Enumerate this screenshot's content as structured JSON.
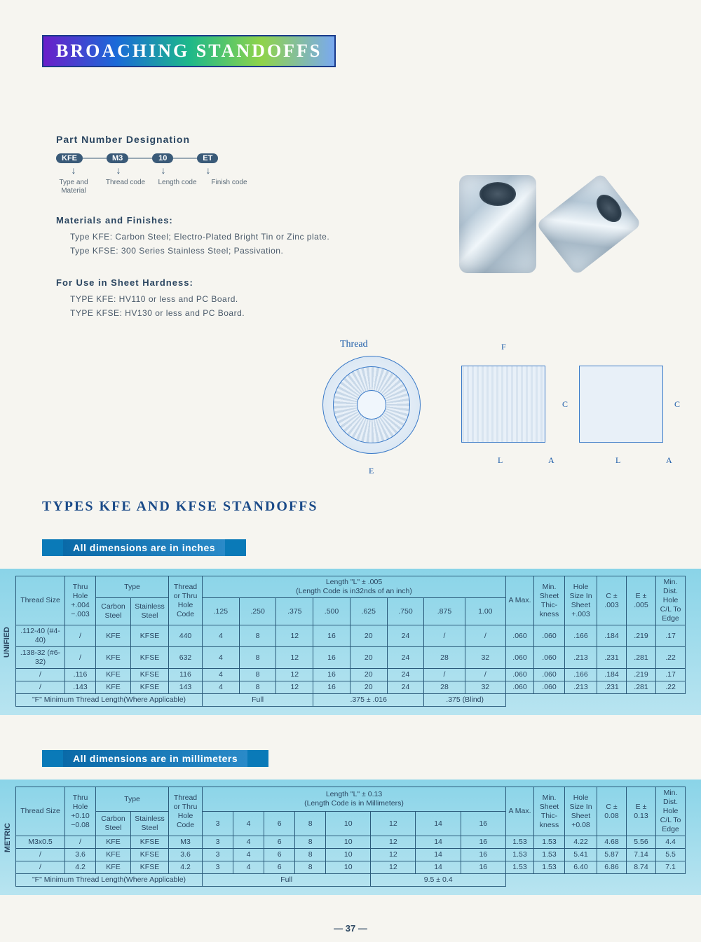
{
  "page": {
    "title": "BROACHING STANDOFFS",
    "section_title": "TYPES KFE AND KFSE STANDOFFS",
    "page_number": "37"
  },
  "part_number": {
    "heading": "Part Number Designation",
    "bubbles": [
      "KFE",
      "M3",
      "10",
      "ET"
    ],
    "labels": [
      "Type and Material",
      "Thread code",
      "Length code",
      "Finish code"
    ]
  },
  "materials": {
    "heading": "Materials and Finishes:",
    "lines": [
      "Type KFE:  Carbon Steel;  Electro-Plated Bright Tin or Zinc plate.",
      "Type KFSE:  300 Series Stainless Steel; Passivation."
    ]
  },
  "hardness": {
    "heading": "For Use in Sheet Hardness:",
    "lines": [
      "TYPE KFE:  HV110 or less and PC Board.",
      "TYPE KFSE:  HV130 or less and PC Board."
    ]
  },
  "diagram": {
    "thread_label": "Thread",
    "dims": {
      "E": "E",
      "F": "F",
      "L": "L",
      "A": "A",
      "C": "C"
    }
  },
  "colors": {
    "accent": "#0a7ab8",
    "table_bg_top": "#8ad4e8",
    "table_bg_bottom": "#b8e4f0",
    "border": "#2a5a7a",
    "text": "#2a4560"
  },
  "table_inches": {
    "banner": "All dimensions are in inches",
    "side_label": "UNIFIED",
    "headers": {
      "thread_size": "Thread Size",
      "thru_hole": "Thru Hole +.004 −.003",
      "type": "Type",
      "carbon": "Carbon Steel",
      "stainless": "Stainless Steel",
      "code": "Thread or Thru Hole Code",
      "length_header": "Length \"L\"  ± .005",
      "length_sub": "(Length Code is in32nds of an inch)",
      "len_vals": [
        ".125",
        ".250",
        ".375",
        ".500",
        ".625",
        ".750",
        ".875",
        "1.00"
      ],
      "a_max": "A Max.",
      "min_sheet": "Min. Sheet Thic-kness",
      "hole_size": "Hole Size In Sheet +.003",
      "c": "C ± .003",
      "e": "E ± .005",
      "min_dist": "Min. Dist. Hole C/L To Edge"
    },
    "rows": [
      {
        "thread": ".112-40 (#4-40)",
        "thru": "/",
        "carbon": "KFE",
        "ss": "KFSE",
        "code": "440",
        "l": [
          "4",
          "8",
          "12",
          "16",
          "20",
          "24",
          "/",
          "/"
        ],
        "a": ".060",
        "ms": ".060",
        "hs": ".166",
        "c": ".184",
        "e": ".219",
        "md": ".17"
      },
      {
        "thread": ".138-32 (#6-32)",
        "thru": "/",
        "carbon": "KFE",
        "ss": "KFSE",
        "code": "632",
        "l": [
          "4",
          "8",
          "12",
          "16",
          "20",
          "24",
          "28",
          "32"
        ],
        "a": ".060",
        "ms": ".060",
        "hs": ".213",
        "c": ".231",
        "e": ".281",
        "md": ".22"
      },
      {
        "thread": "/",
        "thru": ".116",
        "carbon": "KFE",
        "ss": "KFSE",
        "code": "116",
        "l": [
          "4",
          "8",
          "12",
          "16",
          "20",
          "24",
          "/",
          "/"
        ],
        "a": ".060",
        "ms": ".060",
        "hs": ".166",
        "c": ".184",
        "e": ".219",
        "md": ".17"
      },
      {
        "thread": "/",
        "thru": ".143",
        "carbon": "KFE",
        "ss": "KFSE",
        "code": "143",
        "l": [
          "4",
          "8",
          "12",
          "16",
          "20",
          "24",
          "28",
          "32"
        ],
        "a": ".060",
        "ms": ".060",
        "hs": ".213",
        "c": ".231",
        "e": ".281",
        "md": ".22"
      }
    ],
    "footer": {
      "label": "\"F\" Minimum Thread Length(Where Applicable)",
      "c1": "Full",
      "c2": ".375 ± .016",
      "c3": ".375 (Blind)"
    }
  },
  "table_mm": {
    "banner": "All dimensions are in millimeters",
    "side_label": "METRIC",
    "headers": {
      "thread_size": "Thread Size",
      "thru_hole": "Thru Hole +0.10 −0.08",
      "type": "Type",
      "carbon": "Carbon Steel",
      "stainless": "Stainless Steel",
      "code": "Thread or Thru Hole Code",
      "length_header": "Length \"L\"  ± 0.13",
      "length_sub": "(Length Code is in Millimeters)",
      "len_vals": [
        "3",
        "4",
        "6",
        "8",
        "10",
        "12",
        "14",
        "16"
      ],
      "a_max": "A Max.",
      "min_sheet": "Min. Sheet Thic-kness",
      "hole_size": "Hole Size In Sheet +0.08",
      "c": "C ± 0.08",
      "e": "E ± 0.13",
      "min_dist": "Min. Dist. Hole C/L To Edge"
    },
    "rows": [
      {
        "thread": "M3x0.5",
        "thru": "/",
        "carbon": "KFE",
        "ss": "KFSE",
        "code": "M3",
        "l": [
          "3",
          "4",
          "6",
          "8",
          "10",
          "12",
          "14",
          "16"
        ],
        "a": "1.53",
        "ms": "1.53",
        "hs": "4.22",
        "c": "4.68",
        "e": "5.56",
        "md": "4.4"
      },
      {
        "thread": "/",
        "thru": "3.6",
        "carbon": "KFE",
        "ss": "KFSE",
        "code": "3.6",
        "l": [
          "3",
          "4",
          "6",
          "8",
          "10",
          "12",
          "14",
          "16"
        ],
        "a": "1.53",
        "ms": "1.53",
        "hs": "5.41",
        "c": "5.87",
        "e": "7.14",
        "md": "5.5"
      },
      {
        "thread": "/",
        "thru": "4.2",
        "carbon": "KFE",
        "ss": "KFSE",
        "code": "4.2",
        "l": [
          "3",
          "4",
          "6",
          "8",
          "10",
          "12",
          "14",
          "16"
        ],
        "a": "1.53",
        "ms": "1.53",
        "hs": "6.40",
        "c": "6.86",
        "e": "8.74",
        "md": "7.1"
      }
    ],
    "footer": {
      "label": "\"F\" Minimum Thread Length(Where Applicable)",
      "c1": "Full",
      "c2": "9.5 ± 0.4"
    }
  }
}
